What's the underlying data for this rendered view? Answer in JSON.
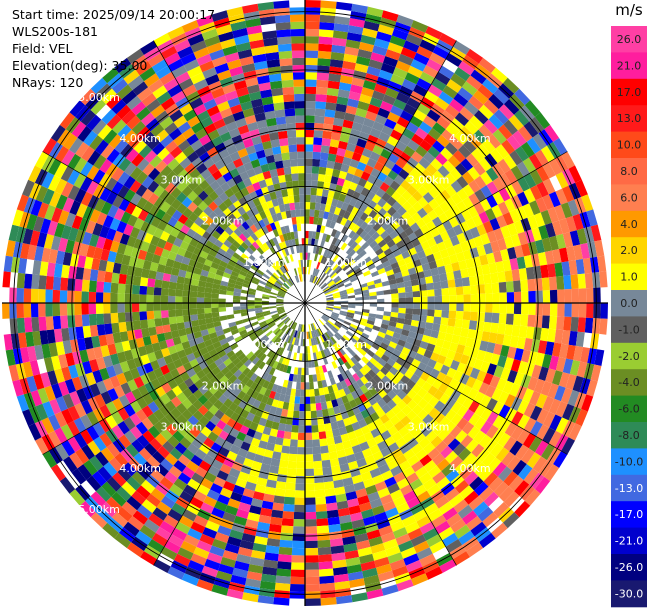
{
  "header": {
    "start_time": "Start time: 2025/09/14 20:00:17",
    "station": "WLS200s-181",
    "field": "Field: VEL",
    "elevation": "Elevation(deg): 35.00",
    "nrays": "NRays: 120"
  },
  "chart_data": {
    "type": "heatmap",
    "projection": "polar-ppi",
    "field": "VEL",
    "unit": "m/s",
    "nrays": 120,
    "elevation_deg": 35.0,
    "ring_labels": [
      "1.00km",
      "2.00km",
      "3.00km",
      "4.00km",
      "5.00km"
    ],
    "ring_distances_km": [
      1,
      2,
      3,
      4,
      5
    ],
    "max_range_km": 5.2,
    "gate_count": 42,
    "colorbar": {
      "label": "m/s",
      "ticks": [
        "26.0",
        "21.0",
        "17.0",
        "13.0",
        "10.0",
        "8.0",
        "6.0",
        "4.0",
        "2.0",
        "1.0",
        "0.0",
        "-1.0",
        "-2.0",
        "-4.0",
        "-6.0",
        "-8.0",
        "-10.0",
        "-13.0",
        "-17.0",
        "-21.0",
        "-26.0",
        "-30.0"
      ],
      "colors": [
        "#ff3fa4",
        "#ff1e9e",
        "#ff0000",
        "#ff1a1a",
        "#ff4a1a",
        "#ff6a45",
        "#ff7f50",
        "#ff9900",
        "#ffd500",
        "#ffff00",
        "#778899",
        "#606060",
        "#9acd32",
        "#6b8e23",
        "#228b22",
        "#2e8b57",
        "#1e90ff",
        "#4169e1",
        "#0000ff",
        "#0000cd",
        "#000080",
        "#191970"
      ]
    }
  }
}
